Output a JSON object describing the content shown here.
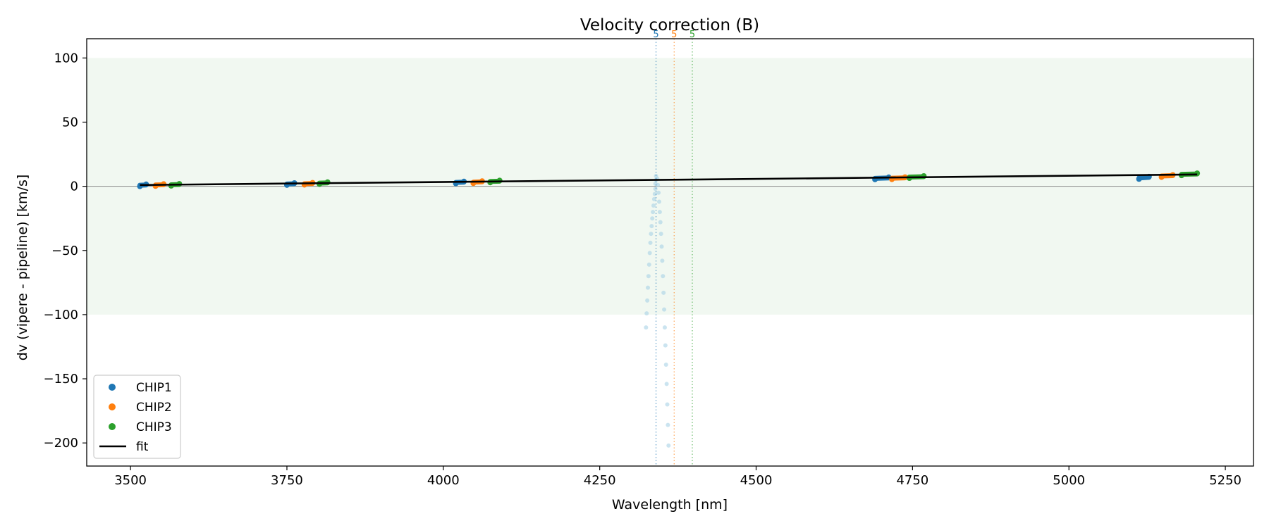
{
  "chart_data": {
    "type": "scatter",
    "title": "Velocity correction (B)",
    "xlabel": "Wavelength [nm]",
    "ylabel": "dv (vipere - pipeline) [km/s]",
    "xlim": [
      3430,
      5295
    ],
    "ylim": [
      -218,
      115
    ],
    "xticks": [
      3500,
      3750,
      4000,
      4250,
      4500,
      4750,
      5000,
      5250
    ],
    "yticks": [
      100,
      50,
      0,
      -50,
      -100,
      -150,
      -200
    ],
    "xtick_labels": [
      "3500",
      "3750",
      "4000",
      "4250",
      "4500",
      "4750",
      "5000",
      "5250"
    ],
    "ytick_labels": [
      "100",
      "50",
      "0",
      "−50",
      "−100",
      "−150",
      "−200"
    ],
    "grid": false,
    "shaded_band": {
      "y": [
        -100,
        100
      ],
      "color": "#f1f8f1"
    },
    "zero_line": {
      "y": 0,
      "color": "#888888"
    },
    "legend_position": "lower-left",
    "series": [
      {
        "name": "CHIP1",
        "color": "#1f77b4",
        "points": [
          {
            "x": 3515,
            "y": 0.8
          },
          {
            "x": 3525,
            "y": 1.0
          },
          {
            "x": 3750,
            "y": 1.8
          },
          {
            "x": 3762,
            "y": 2.0
          },
          {
            "x": 4020,
            "y": 3.0
          },
          {
            "x": 4033,
            "y": 3.2
          },
          {
            "x": 4690,
            "y": 6.2
          },
          {
            "x": 4712,
            "y": 6.5
          },
          {
            "x": 5112,
            "y": 6.5
          },
          {
            "x": 5128,
            "y": 7.0
          }
        ]
      },
      {
        "name": "CHIP2",
        "color": "#ff7f0e",
        "points": [
          {
            "x": 3540,
            "y": 1.0
          },
          {
            "x": 3553,
            "y": 1.2
          },
          {
            "x": 3778,
            "y": 2.0
          },
          {
            "x": 3791,
            "y": 2.2
          },
          {
            "x": 4048,
            "y": 3.2
          },
          {
            "x": 4062,
            "y": 3.5
          },
          {
            "x": 4717,
            "y": 6.3
          },
          {
            "x": 4738,
            "y": 6.6
          },
          {
            "x": 5148,
            "y": 8.0
          },
          {
            "x": 5166,
            "y": 8.3
          }
        ]
      },
      {
        "name": "CHIP3",
        "color": "#2ca02c",
        "points": [
          {
            "x": 3565,
            "y": 1.2
          },
          {
            "x": 3578,
            "y": 1.4
          },
          {
            "x": 3802,
            "y": 2.5
          },
          {
            "x": 3815,
            "y": 2.7
          },
          {
            "x": 4075,
            "y": 3.8
          },
          {
            "x": 4090,
            "y": 4.0
          },
          {
            "x": 4745,
            "y": 7.2
          },
          {
            "x": 4768,
            "y": 7.5
          },
          {
            "x": 5180,
            "y": 9.3
          },
          {
            "x": 5205,
            "y": 9.6
          }
        ]
      }
    ],
    "fit": {
      "name": "fit",
      "color": "#000000",
      "x": [
        3515,
        5205
      ],
      "y": [
        1.0,
        9.2
      ]
    },
    "faint_order": {
      "color": "#a9d2e6",
      "points": [
        {
          "x": 4340,
          "y": 8
        },
        {
          "x": 4340,
          "y": 5
        },
        {
          "x": 4339,
          "y": 2
        },
        {
          "x": 4339,
          "y": -2
        },
        {
          "x": 4338,
          "y": -6
        },
        {
          "x": 4337,
          "y": -10
        },
        {
          "x": 4336,
          "y": -15
        },
        {
          "x": 4335,
          "y": -20
        },
        {
          "x": 4334,
          "y": -25
        },
        {
          "x": 4333,
          "y": -31
        },
        {
          "x": 4332,
          "y": -37
        },
        {
          "x": 4331,
          "y": -44
        },
        {
          "x": 4330,
          "y": -52
        },
        {
          "x": 4329,
          "y": -61
        },
        {
          "x": 4328,
          "y": -70
        },
        {
          "x": 4327,
          "y": -79
        },
        {
          "x": 4326,
          "y": -89
        },
        {
          "x": 4325,
          "y": -99
        },
        {
          "x": 4324,
          "y": -110
        },
        {
          "x": 4342,
          "y": 6
        },
        {
          "x": 4343,
          "y": 1
        },
        {
          "x": 4344,
          "y": -5
        },
        {
          "x": 4345,
          "y": -12
        },
        {
          "x": 4346,
          "y": -20
        },
        {
          "x": 4347,
          "y": -28
        },
        {
          "x": 4348,
          "y": -37
        },
        {
          "x": 4349,
          "y": -47
        },
        {
          "x": 4350,
          "y": -58
        },
        {
          "x": 4351,
          "y": -70
        },
        {
          "x": 4352,
          "y": -83
        },
        {
          "x": 4353,
          "y": -96
        },
        {
          "x": 4354,
          "y": -110
        },
        {
          "x": 4355,
          "y": -124
        },
        {
          "x": 4356,
          "y": -139
        },
        {
          "x": 4357,
          "y": -154
        },
        {
          "x": 4358,
          "y": -170
        },
        {
          "x": 4359,
          "y": -186
        },
        {
          "x": 4360,
          "y": -202
        }
      ]
    },
    "order_markers": [
      {
        "x": 4340,
        "label": "5",
        "color": "#1f77b4"
      },
      {
        "x": 4369,
        "label": "5",
        "color": "#ff7f0e"
      },
      {
        "x": 4398,
        "label": "5",
        "color": "#2ca02c"
      }
    ],
    "legend": [
      {
        "label": "CHIP1",
        "kind": "dot",
        "color": "#1f77b4"
      },
      {
        "label": "CHIP2",
        "kind": "dot",
        "color": "#ff7f0e"
      },
      {
        "label": "CHIP3",
        "kind": "dot",
        "color": "#2ca02c"
      },
      {
        "label": "fit",
        "kind": "line",
        "color": "#000000"
      }
    ]
  }
}
